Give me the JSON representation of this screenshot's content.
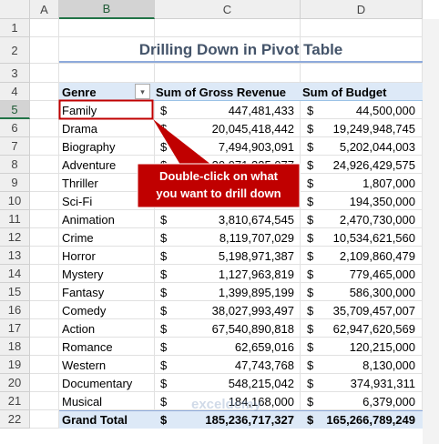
{
  "sheet": {
    "column_headers": [
      "A",
      "B",
      "C",
      "D"
    ],
    "row_headers": [
      1,
      2,
      3,
      4,
      5,
      6,
      7,
      8,
      9,
      10,
      11,
      12,
      13,
      14,
      15,
      16,
      17,
      18,
      19,
      20,
      21,
      22
    ],
    "title": "Drilling Down in Pivot Table",
    "table": {
      "headers": [
        "Genre",
        "Sum of Gross Revenue",
        "Sum of Budget"
      ],
      "currency": "$",
      "rows": [
        [
          "Family",
          "447,481,433",
          "44,500,000"
        ],
        [
          "Drama",
          "20,045,418,442",
          "19,249,948,745"
        ],
        [
          "Biography",
          "7,494,903,091",
          "5,202,044,003"
        ],
        [
          "Adventure",
          "20,971,335,077",
          "24,926,429,575"
        ],
        [
          "Thriller",
          null,
          "1,807,000"
        ],
        [
          "Sci-Fi",
          null,
          "194,350,000"
        ],
        [
          "Animation",
          "3,810,674,545",
          "2,470,730,000"
        ],
        [
          "Crime",
          "8,119,707,029",
          "10,534,621,560"
        ],
        [
          "Horror",
          "5,198,971,387",
          "2,109,860,479"
        ],
        [
          "Mystery",
          "1,127,963,819",
          "779,465,000"
        ],
        [
          "Fantasy",
          "1,399,895,199",
          "586,300,000"
        ],
        [
          "Comedy",
          "38,027,993,497",
          "35,709,457,007"
        ],
        [
          "Action",
          "67,540,890,818",
          "62,947,620,569"
        ],
        [
          "Romance",
          "62,659,016",
          "120,215,000"
        ],
        [
          "Western",
          "47,743,768",
          "8,130,000"
        ],
        [
          "Documentary",
          "548,215,042",
          "374,931,311"
        ],
        [
          "Musical",
          "184,168,000",
          "6,379,000"
        ]
      ],
      "total": [
        "Grand Total",
        "185,236,717,327",
        "165,266,789,249"
      ]
    },
    "callout": [
      "Double-click on what",
      "you want to drill down"
    ],
    "watermark": "exceldemy"
  }
}
